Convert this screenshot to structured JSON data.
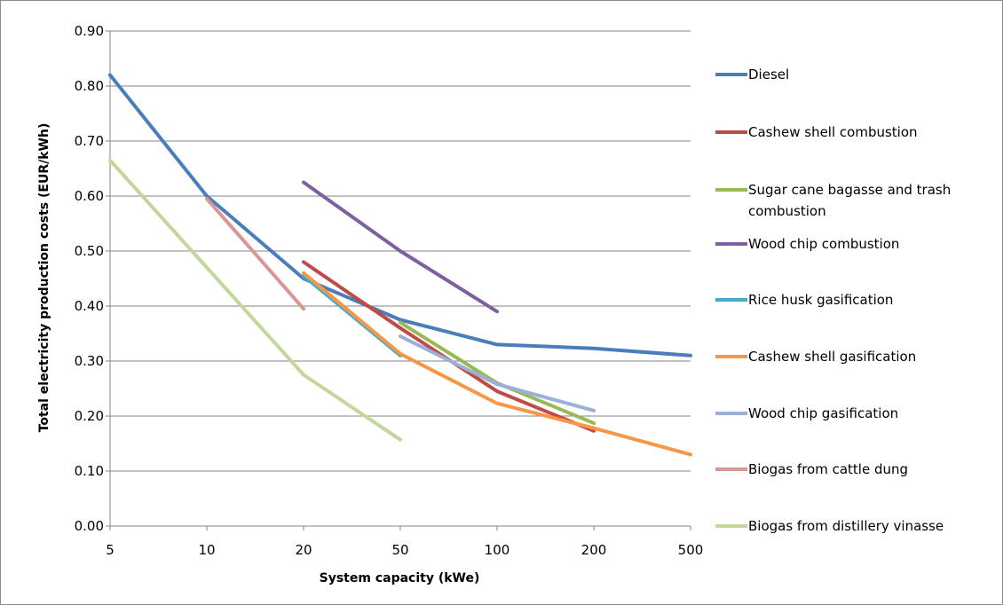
{
  "chart_data": {
    "type": "line",
    "xlabel": "System capacity  (kWe)",
    "ylabel": "Total electricity production costs  (EUR/kWh)",
    "categories": [
      "5",
      "10",
      "20",
      "50",
      "100",
      "200",
      "500"
    ],
    "ylim": [
      0,
      0.9
    ],
    "yticks": [
      "0.00",
      "0.10",
      "0.20",
      "0.30",
      "0.40",
      "0.50",
      "0.60",
      "0.70",
      "0.80",
      "0.90"
    ],
    "grid": true,
    "legend_position": "right",
    "series": [
      {
        "name": "Diesel",
        "color": "#4a7ebb",
        "points": [
          [
            5,
            0.82
          ],
          [
            10,
            0.6
          ],
          [
            20,
            0.45
          ],
          [
            50,
            0.375
          ],
          [
            100,
            0.33
          ],
          [
            200,
            0.323
          ],
          [
            500,
            0.31
          ]
        ]
      },
      {
        "name": "Cashew shell combustion",
        "color": "#be4b48",
        "points": [
          [
            20,
            0.48
          ],
          [
            50,
            0.36
          ],
          [
            100,
            0.245
          ],
          [
            200,
            0.173
          ]
        ]
      },
      {
        "name": "Sugar cane bagasse and trash combustion",
        "legend_lines": [
          "Sugar cane bagasse and trash",
          "combustion"
        ],
        "color": "#98b954",
        "points": [
          [
            50,
            0.37
          ],
          [
            100,
            0.26
          ],
          [
            200,
            0.187
          ]
        ]
      },
      {
        "name": "Wood chip combustion",
        "color": "#7d60a0",
        "points": [
          [
            20,
            0.625
          ],
          [
            50,
            0.5
          ],
          [
            100,
            0.39
          ]
        ]
      },
      {
        "name": "Rice husk gasification",
        "color": "#46aac5",
        "points": [
          [
            20,
            0.455
          ],
          [
            50,
            0.31
          ]
        ]
      },
      {
        "name": "Cashew shell gasification",
        "color": "#f79646",
        "points": [
          [
            20,
            0.46
          ],
          [
            50,
            0.313
          ],
          [
            100,
            0.223
          ],
          [
            200,
            0.178
          ],
          [
            500,
            0.13
          ]
        ]
      },
      {
        "name": "Wood chip gasification",
        "color": "#9bb0d8",
        "points": [
          [
            50,
            0.345
          ],
          [
            100,
            0.258
          ],
          [
            200,
            0.21
          ]
        ]
      },
      {
        "name": "Biogas from cattle dung",
        "color": "#d99694",
        "points": [
          [
            10,
            0.595
          ],
          [
            20,
            0.395
          ]
        ]
      },
      {
        "name": "Biogas from distillery vinasse",
        "color": "#c3d69b",
        "points": [
          [
            5,
            0.665
          ],
          [
            10,
            0.47
          ],
          [
            20,
            0.275
          ],
          [
            50,
            0.157
          ]
        ]
      }
    ]
  }
}
